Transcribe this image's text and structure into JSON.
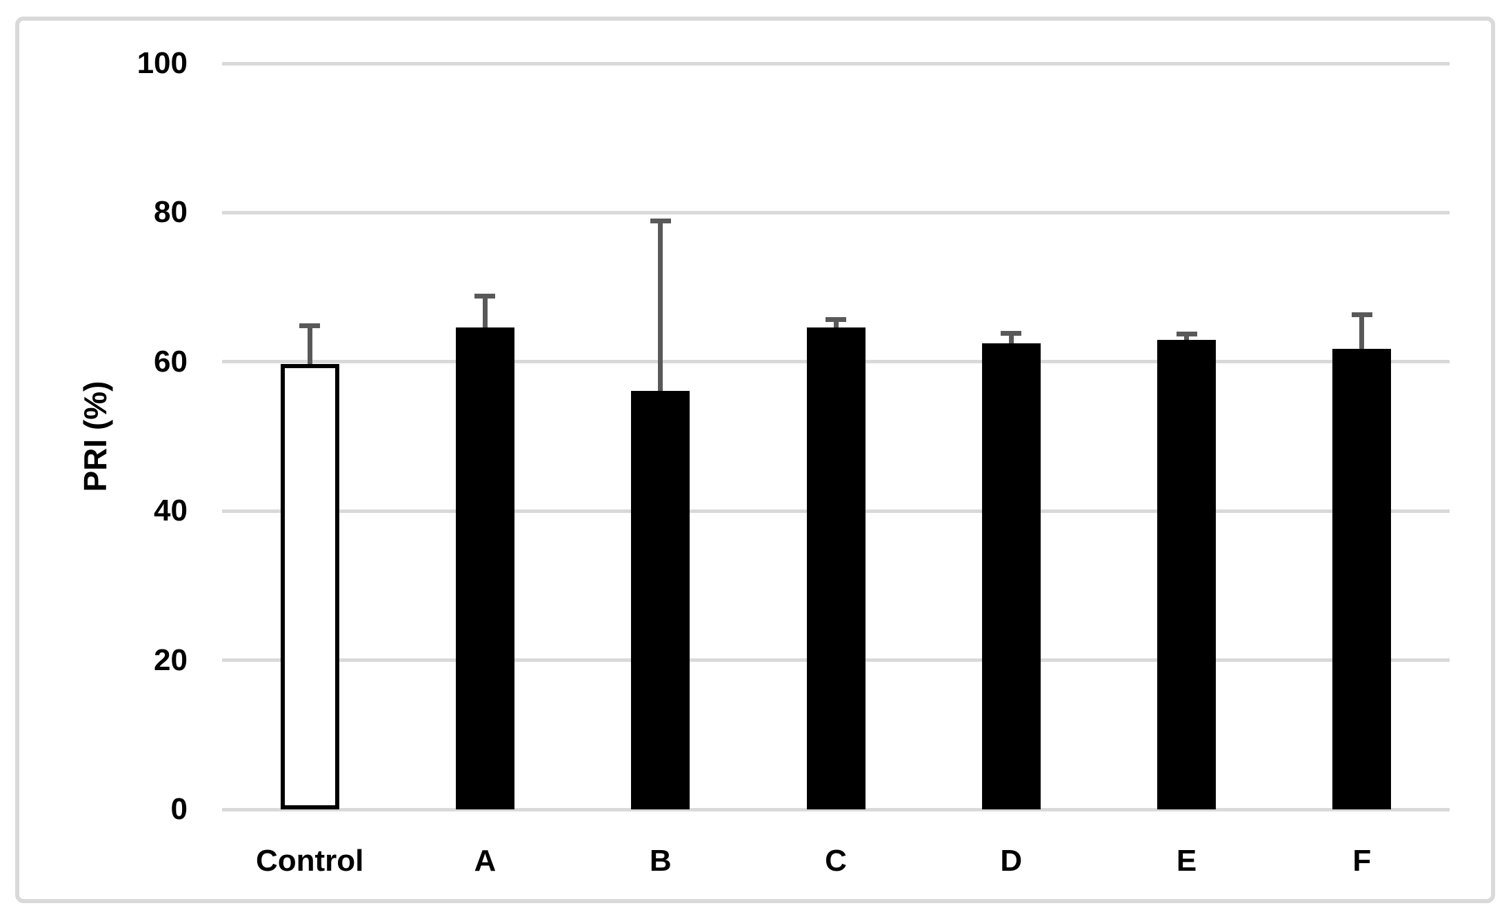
{
  "chart_data": {
    "type": "bar",
    "title": "",
    "xlabel": "",
    "ylabel": "PRI (%)",
    "categories": [
      "Control",
      "A",
      "B",
      "C",
      "D",
      "E",
      "F"
    ],
    "series": [
      {
        "name": "PRI",
        "values": [
          59.7,
          64.6,
          56.1,
          64.6,
          62.5,
          62.9,
          61.7
        ],
        "error_plus": [
          5.1,
          4.2,
          22.8,
          1.1,
          1.3,
          0.8,
          4.6
        ]
      }
    ],
    "ylim": [
      0,
      100
    ],
    "yticks": [
      0,
      20,
      40,
      60,
      80,
      100
    ],
    "grid": "horizontal-only",
    "legend": "none",
    "bar_styles": [
      {
        "fill": "#ffffff",
        "stroke": "#000000"
      },
      {
        "fill": "#000000",
        "stroke": "#000000"
      },
      {
        "fill": "#000000",
        "stroke": "#000000"
      },
      {
        "fill": "#000000",
        "stroke": "#000000"
      },
      {
        "fill": "#000000",
        "stroke": "#000000"
      },
      {
        "fill": "#000000",
        "stroke": "#000000"
      },
      {
        "fill": "#000000",
        "stroke": "#000000"
      }
    ]
  },
  "colors": {
    "gridline": "#d9d9d9",
    "frame_border": "#d9d9d9",
    "error_bar": "#595959",
    "text": "#000000",
    "background": "#ffffff"
  }
}
